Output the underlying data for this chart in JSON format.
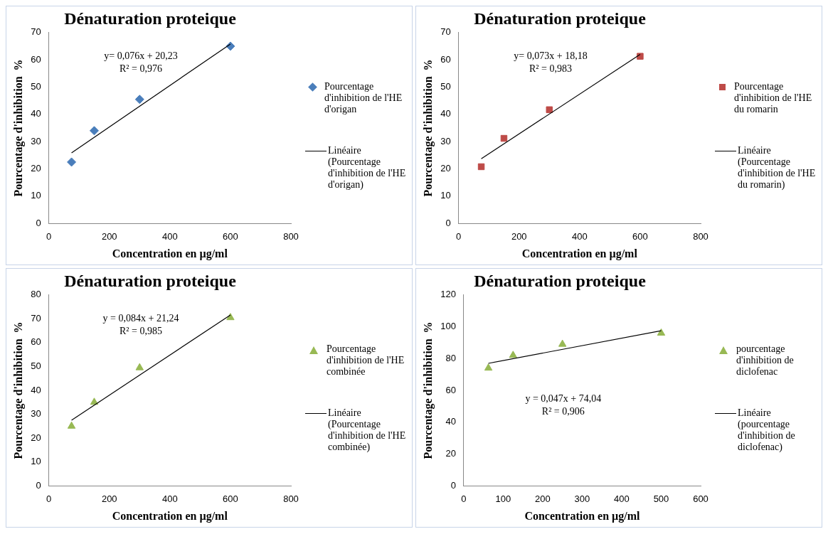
{
  "chart_data": [
    {
      "type": "scatter",
      "title": "Dénaturation proteique",
      "xlabel": "Concentration en µg/ml",
      "ylabel": "Pourcentage d'inhibition  %",
      "x": [
        75,
        150,
        300,
        600
      ],
      "xlim": [
        0,
        800
      ],
      "xticks": [
        0,
        200,
        400,
        600,
        800
      ],
      "ylim": [
        0,
        70
      ],
      "yticks": [
        0,
        10,
        20,
        30,
        40,
        50,
        60,
        70
      ],
      "grid": false,
      "legend": "right",
      "annotations": [
        "y= 0,076x + 20,23",
        "R² = 0,976"
      ],
      "series": [
        {
          "name": "Pourcentage d'inhibition de l'HE d'origan",
          "marker": "diamond",
          "color": "#4a7ebb",
          "values": [
            22.5,
            34,
            45.5,
            65
          ]
        },
        {
          "name": "Linéaire (Pourcentage d'inhibition de l'HE d'origan)",
          "type": "line",
          "color": "#000000",
          "x": [
            75,
            600
          ],
          "values": [
            25.9,
            65.8
          ]
        }
      ]
    },
    {
      "type": "scatter",
      "title": "Dénaturation proteique",
      "xlabel": "Concentration en µg/ml",
      "ylabel": "Pourcentage d'inhibition  %",
      "x": [
        75,
        150,
        300,
        600
      ],
      "xlim": [
        0,
        800
      ],
      "xticks": [
        0,
        200,
        400,
        600,
        800
      ],
      "ylim": [
        0,
        70
      ],
      "yticks": [
        0,
        10,
        20,
        30,
        40,
        50,
        60,
        70
      ],
      "grid": false,
      "legend": "right",
      "annotations": [
        "y= 0,073x + 18,18",
        "R² = 0,983"
      ],
      "series": [
        {
          "name": "Pourcentage d'inhibition de l'HE du romarin",
          "marker": "square",
          "color": "#be4b48",
          "values": [
            20.8,
            31.2,
            41.7,
            61.3
          ]
        },
        {
          "name": "Linéaire (Pourcentage d'inhibition de l'HE du romarin)",
          "type": "line",
          "color": "#000000",
          "x": [
            75,
            600
          ],
          "values": [
            23.7,
            62
          ]
        }
      ]
    },
    {
      "type": "scatter",
      "title": "Dénaturation proteique",
      "xlabel": "Concentration en µg/ml",
      "ylabel": "Pourcentage d'inhibition  %",
      "x": [
        75,
        150,
        300,
        600
      ],
      "xlim": [
        0,
        800
      ],
      "xticks": [
        0,
        200,
        400,
        600,
        800
      ],
      "ylim": [
        0,
        80
      ],
      "yticks": [
        0,
        10,
        20,
        30,
        40,
        50,
        60,
        70,
        80
      ],
      "grid": false,
      "legend": "right",
      "annotations": [
        "y = 0,084x + 21,24",
        "R² = 0,985"
      ],
      "series": [
        {
          "name": "Pourcentage d'inhibition de l'HE combinée",
          "marker": "triangle",
          "color": "#98b954",
          "values": [
            25,
            35,
            49.5,
            70.5
          ]
        },
        {
          "name": "Linéaire (Pourcentage d'inhibition de l'HE combinée)",
          "type": "line",
          "color": "#000000",
          "x": [
            75,
            600
          ],
          "values": [
            27.5,
            71.6
          ]
        }
      ]
    },
    {
      "type": "scatter",
      "title": "Dénaturation proteique",
      "xlabel": "Concentration en µg/ml",
      "ylabel": "Pourcentage d'inhibition  %",
      "x": [
        62.5,
        125,
        250,
        500
      ],
      "xlim": [
        0,
        600
      ],
      "xticks": [
        0,
        100,
        200,
        300,
        400,
        500,
        600
      ],
      "ylim": [
        0,
        120
      ],
      "yticks": [
        0,
        20,
        40,
        60,
        80,
        100,
        120
      ],
      "grid": false,
      "legend": "right",
      "annotations": [
        "y = 0,047x + 74,04",
        "R² = 0,906"
      ],
      "series": [
        {
          "name": "pourcentage d'inhibition de diclofenac",
          "marker": "triangle",
          "color": "#98b954",
          "values": [
            74,
            82,
            89,
            96
          ]
        },
        {
          "name": "Linéaire (pourcentage d'inhibition de diclofenac)",
          "type": "line",
          "color": "#000000",
          "x": [
            62.5,
            500
          ],
          "values": [
            77,
            97.5
          ]
        }
      ]
    }
  ]
}
